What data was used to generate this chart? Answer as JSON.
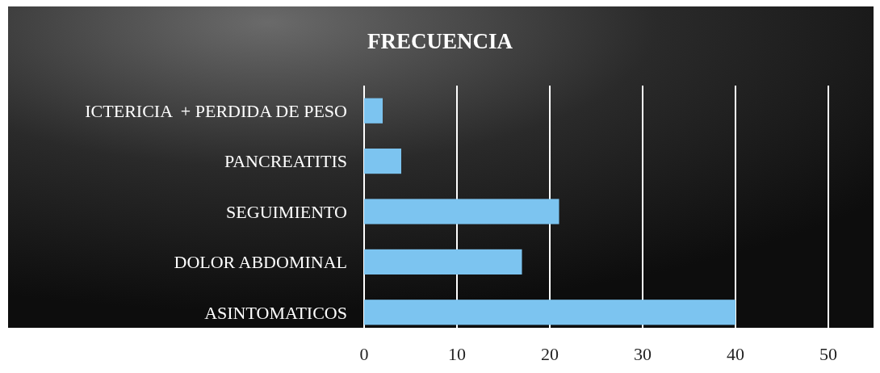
{
  "chart_data": {
    "type": "bar",
    "title": "FRECUENCIA",
    "orientation": "horizontal",
    "categories": [
      "ICTERICIA  + PERDIDA DE PESO",
      "PANCREATITIS",
      "SEGUIMIENTO",
      "DOLOR ABDOMINAL",
      "ASINTOMATICOS"
    ],
    "values": [
      2,
      4,
      21,
      17,
      40
    ],
    "color": "#7cc4f0",
    "xlim": [
      0,
      50
    ],
    "xticks": [
      0,
      10,
      20,
      30,
      40,
      50
    ],
    "grid": "x"
  }
}
